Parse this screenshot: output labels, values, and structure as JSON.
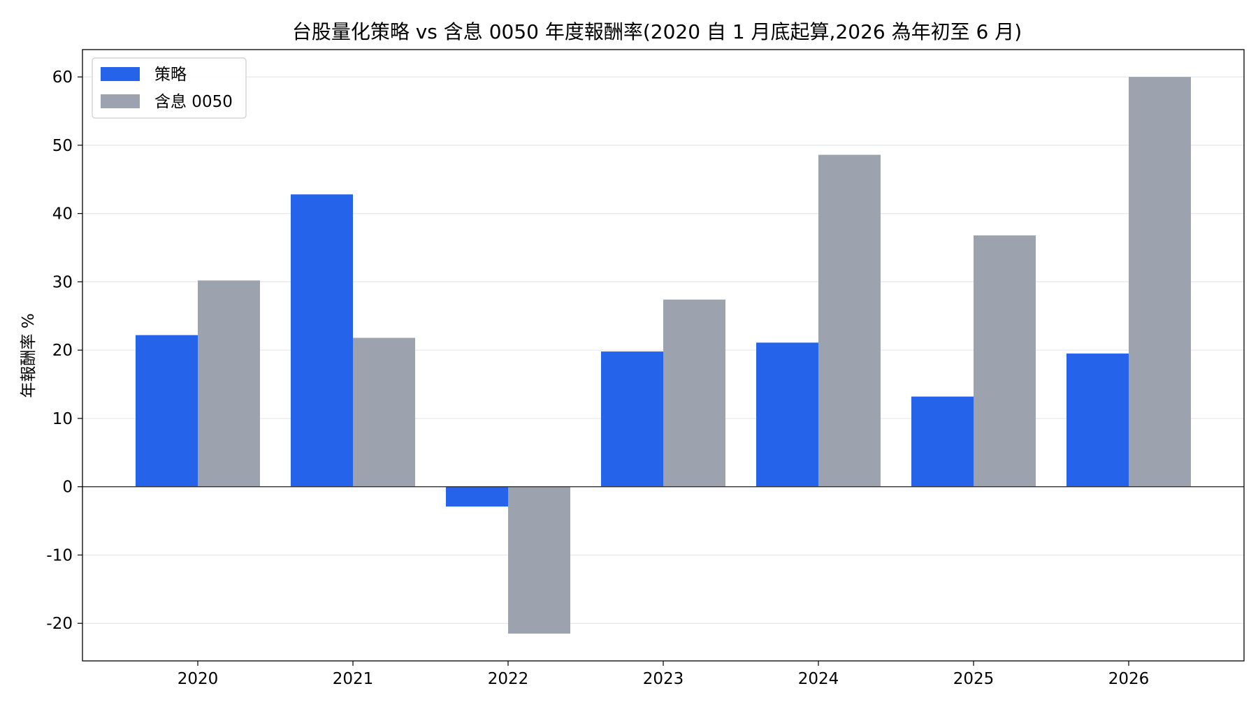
{
  "chart_data": {
    "type": "bar",
    "title": "台股量化策略 vs 含息 0050 年度報酬率(2020 自 1 月底起算,2026 為年初至 6 月)",
    "xlabel": "",
    "ylabel": "年報酬率 %",
    "categories": [
      "2020",
      "2021",
      "2022",
      "2023",
      "2024",
      "2025",
      "2026"
    ],
    "series": [
      {
        "name": "策略",
        "color": "#2563eb",
        "values": [
          22.2,
          42.8,
          -2.9,
          19.8,
          21.1,
          13.2,
          19.5
        ]
      },
      {
        "name": "含息 0050",
        "color": "#9ca3af",
        "values": [
          30.2,
          21.8,
          -21.5,
          27.4,
          48.6,
          36.8,
          60.0
        ]
      }
    ],
    "ylim": [
      -25.5,
      64
    ],
    "yticks": [
      -20,
      -10,
      0,
      10,
      20,
      30,
      40,
      50,
      60
    ],
    "ytick_labels": [
      "-20",
      "-10",
      "0",
      "10",
      "20",
      "30",
      "40",
      "50",
      "60"
    ],
    "grid": "y",
    "legend_position": "upper-left",
    "zero_line": true
  }
}
